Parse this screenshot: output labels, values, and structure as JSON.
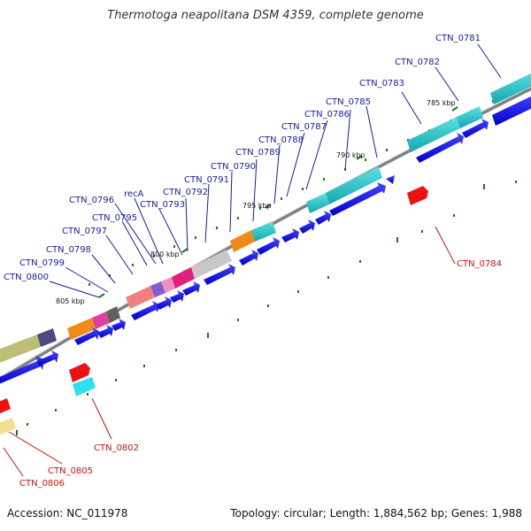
{
  "title": "Thermotoga neapolitana DSM 4359, complete genome",
  "footer": {
    "accession": "Accession: NC_011978",
    "topology": "Topology: circular; Length: 1,884,562 bp; Genes: 1,988"
  },
  "colors": {
    "forward_gene_label": "#1a1aa8",
    "reverse_gene_label": "#cc1111",
    "cds_arrow": "#0000ee",
    "backbone": "#808080",
    "tick": "#1a7a1a"
  },
  "scale_labels": [
    "805 kbp",
    "800 kbp",
    "795 kbp",
    "790 kbp",
    "785 kbp"
  ],
  "forward_genes": [
    "CTN_0800",
    "CTN_0799",
    "CTN_0798",
    "CTN_0797",
    "CTN_0795",
    "CTN_0796",
    "recA",
    "CTN_0793",
    "CTN_0792",
    "CTN_0791",
    "CTN_0790",
    "CTN_0789",
    "CTN_0788",
    "CTN_0787",
    "CTN_0786",
    "CTN_0785",
    "CTN_0783",
    "CTN_0782",
    "CTN_0781"
  ],
  "reverse_genes": [
    "CTN_0784",
    "CTN_0802",
    "CTN_0805",
    "CTN_0806"
  ]
}
